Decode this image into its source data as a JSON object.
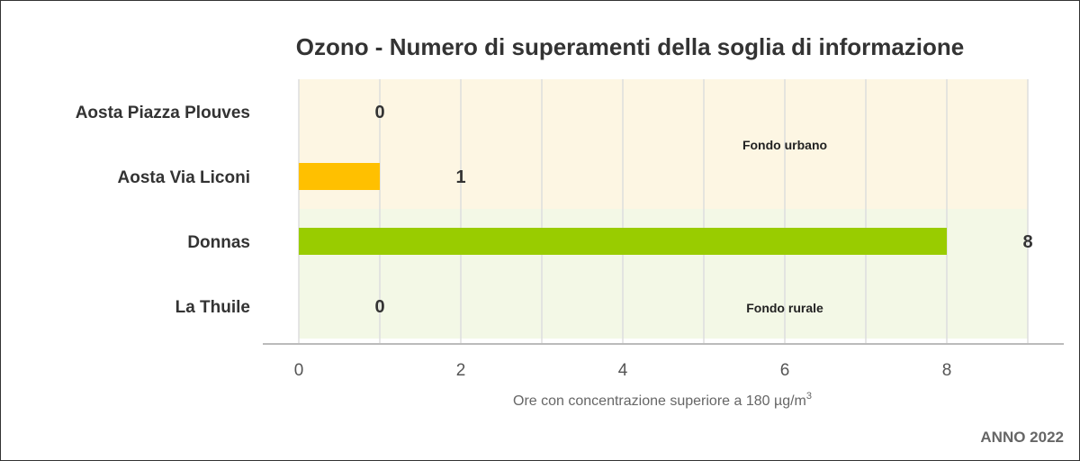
{
  "chart_data": {
    "type": "bar",
    "orientation": "horizontal",
    "title": "Ozono - Numero di superamenti della soglia di informazione",
    "xlabel": "Ore con concentrazione superiore a 180 µg/m",
    "xlabel_superscript": "3",
    "categories": [
      "Aosta Piazza Plouves",
      "Aosta Via Liconi",
      "Donnas",
      "La Thuile"
    ],
    "values": [
      0,
      1,
      8,
      0
    ],
    "bar_colors": [
      "#ffc000",
      "#ffc000",
      "#99cc00",
      "#99cc00"
    ],
    "xlim": [
      0,
      9
    ],
    "xticks": [
      0,
      2,
      4,
      6,
      8
    ],
    "grid": true,
    "bands": [
      {
        "label": "Fondo urbano",
        "categories": [
          "Aosta Piazza Plouves",
          "Aosta Via Liconi"
        ],
        "color": "#fdf6e3"
      },
      {
        "label": "Fondo rurale",
        "categories": [
          "Donnas",
          "La Thuile"
        ],
        "color": "#f3f8e6"
      }
    ],
    "footer": "ANNO 2022"
  }
}
